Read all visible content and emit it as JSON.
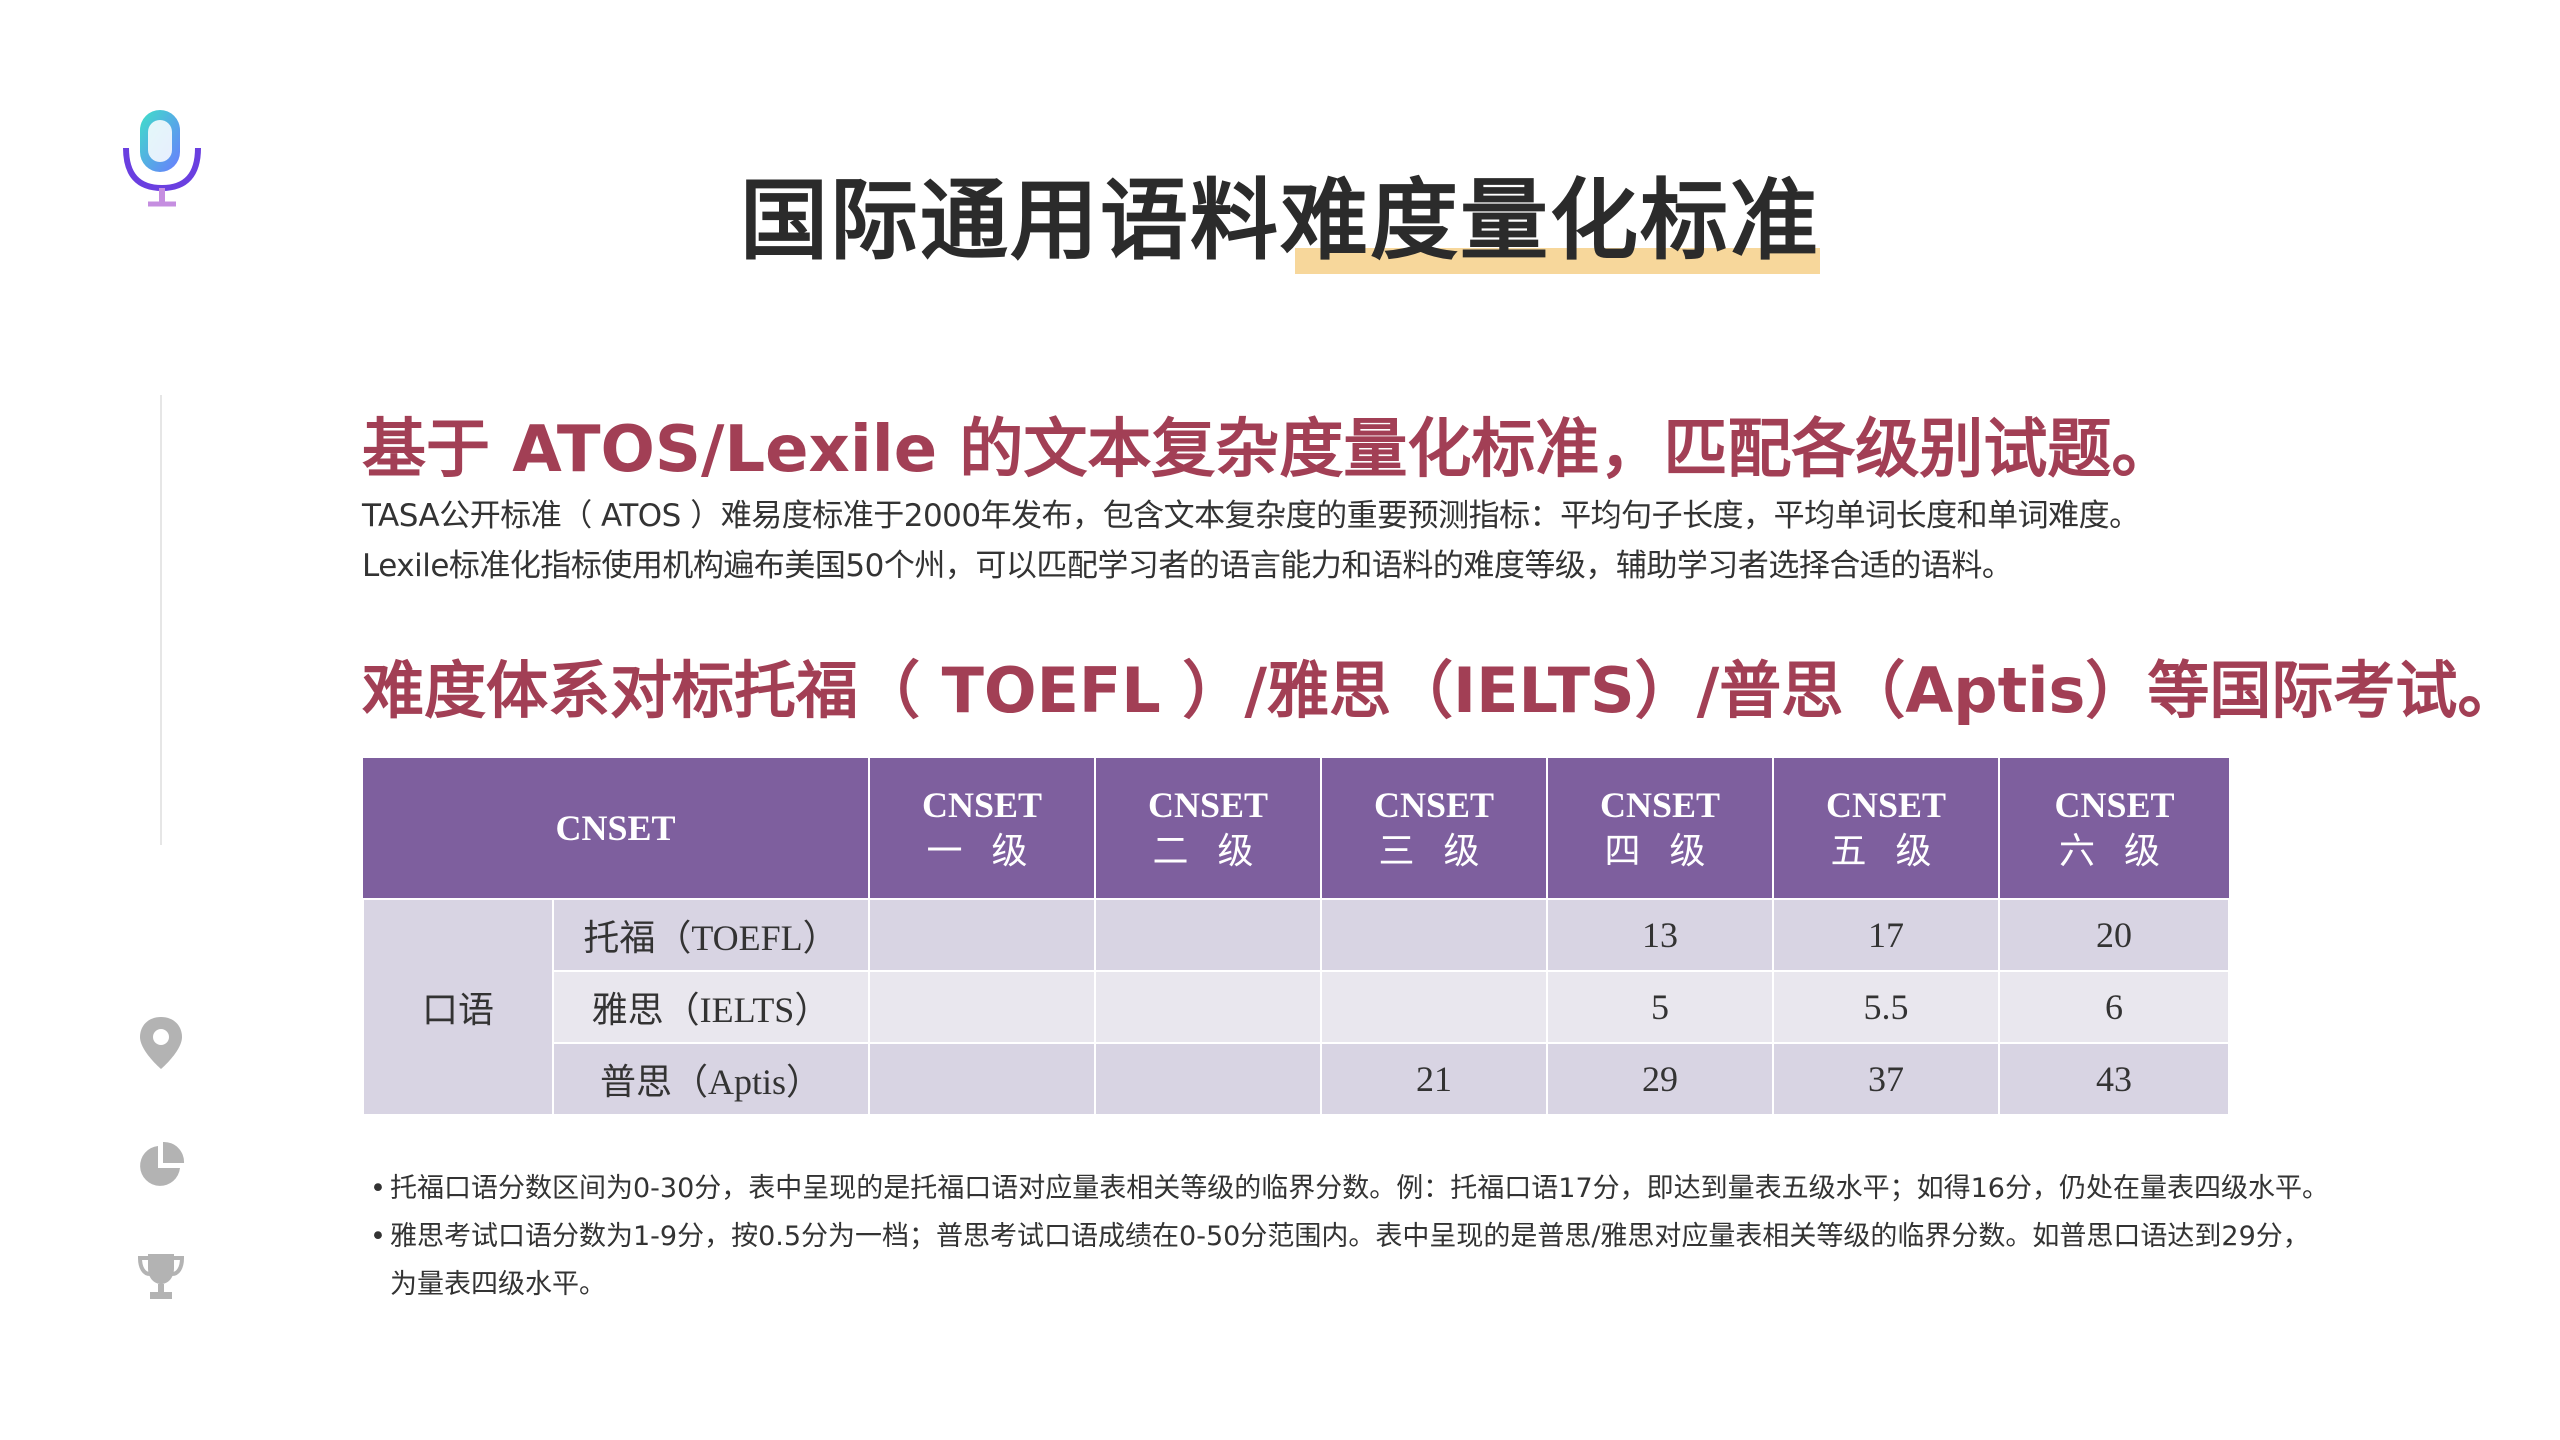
{
  "title": "国际通用语料难度量化标准",
  "heading1": "基于 ATOS/Lexile 的文本复杂度量化标准，匹配各级别试题。",
  "paragraph1": "TASA公开标准（ ATOS ）难易度标准于2000年发布，包含文本复杂度的重要预测指标：平均句子长度，平均单词长度和单词难度。",
  "paragraph2": "Lexile标准化指标使用机构遍布美国50个州，可以匹配学习者的语言能力和语料的难度等级，辅助学习者选择合适的语料。",
  "heading2": "难度体系对标托福（ TOEFL ）/雅思（IELTS）/普思（Aptis）等国际考试。",
  "table": {
    "corner": "CNSET",
    "columns": [
      {
        "top": "CNSET",
        "bottom": "一 级"
      },
      {
        "top": "CNSET",
        "bottom": "二 级"
      },
      {
        "top": "CNSET",
        "bottom": "三 级"
      },
      {
        "top": "CNSET",
        "bottom": "四 级"
      },
      {
        "top": "CNSET",
        "bottom": "五 级"
      },
      {
        "top": "CNSET",
        "bottom": "六 级"
      }
    ],
    "group": "口语",
    "rows": [
      {
        "exam": "托福（TOEFL）",
        "values": [
          "",
          "",
          "",
          "13",
          "17",
          "20"
        ]
      },
      {
        "exam": "雅思（IELTS）",
        "values": [
          "",
          "",
          "",
          "5",
          "5.5",
          "6"
        ]
      },
      {
        "exam": "普思（Aptis）",
        "values": [
          "",
          "",
          "21",
          "29",
          "37",
          "43"
        ]
      }
    ]
  },
  "notes": {
    "bullet": "•",
    "line1": "托福口语分数区间为0-30分，表中呈现的是托福口语对应量表相关等级的临界分数。例：托福口语17分，即达到量表五级水平；如得16分，仍处在量表四级水平。",
    "line2": "雅思考试口语分数为1-9分，按0.5分为一档；普思考试口语成绩在0-50分范围内。表中呈现的是普思/雅思对应量表相关等级的临界分数。如普思口语达到29分，",
    "line3": "为量表四级水平。"
  },
  "icons": [
    "microphone-logo-icon",
    "location-pin-icon",
    "pie-chart-icon",
    "trophy-icon"
  ],
  "colors": {
    "accent": "#a23f55",
    "table_header": "#7e5f9e",
    "highlight": "#f7d79b"
  }
}
